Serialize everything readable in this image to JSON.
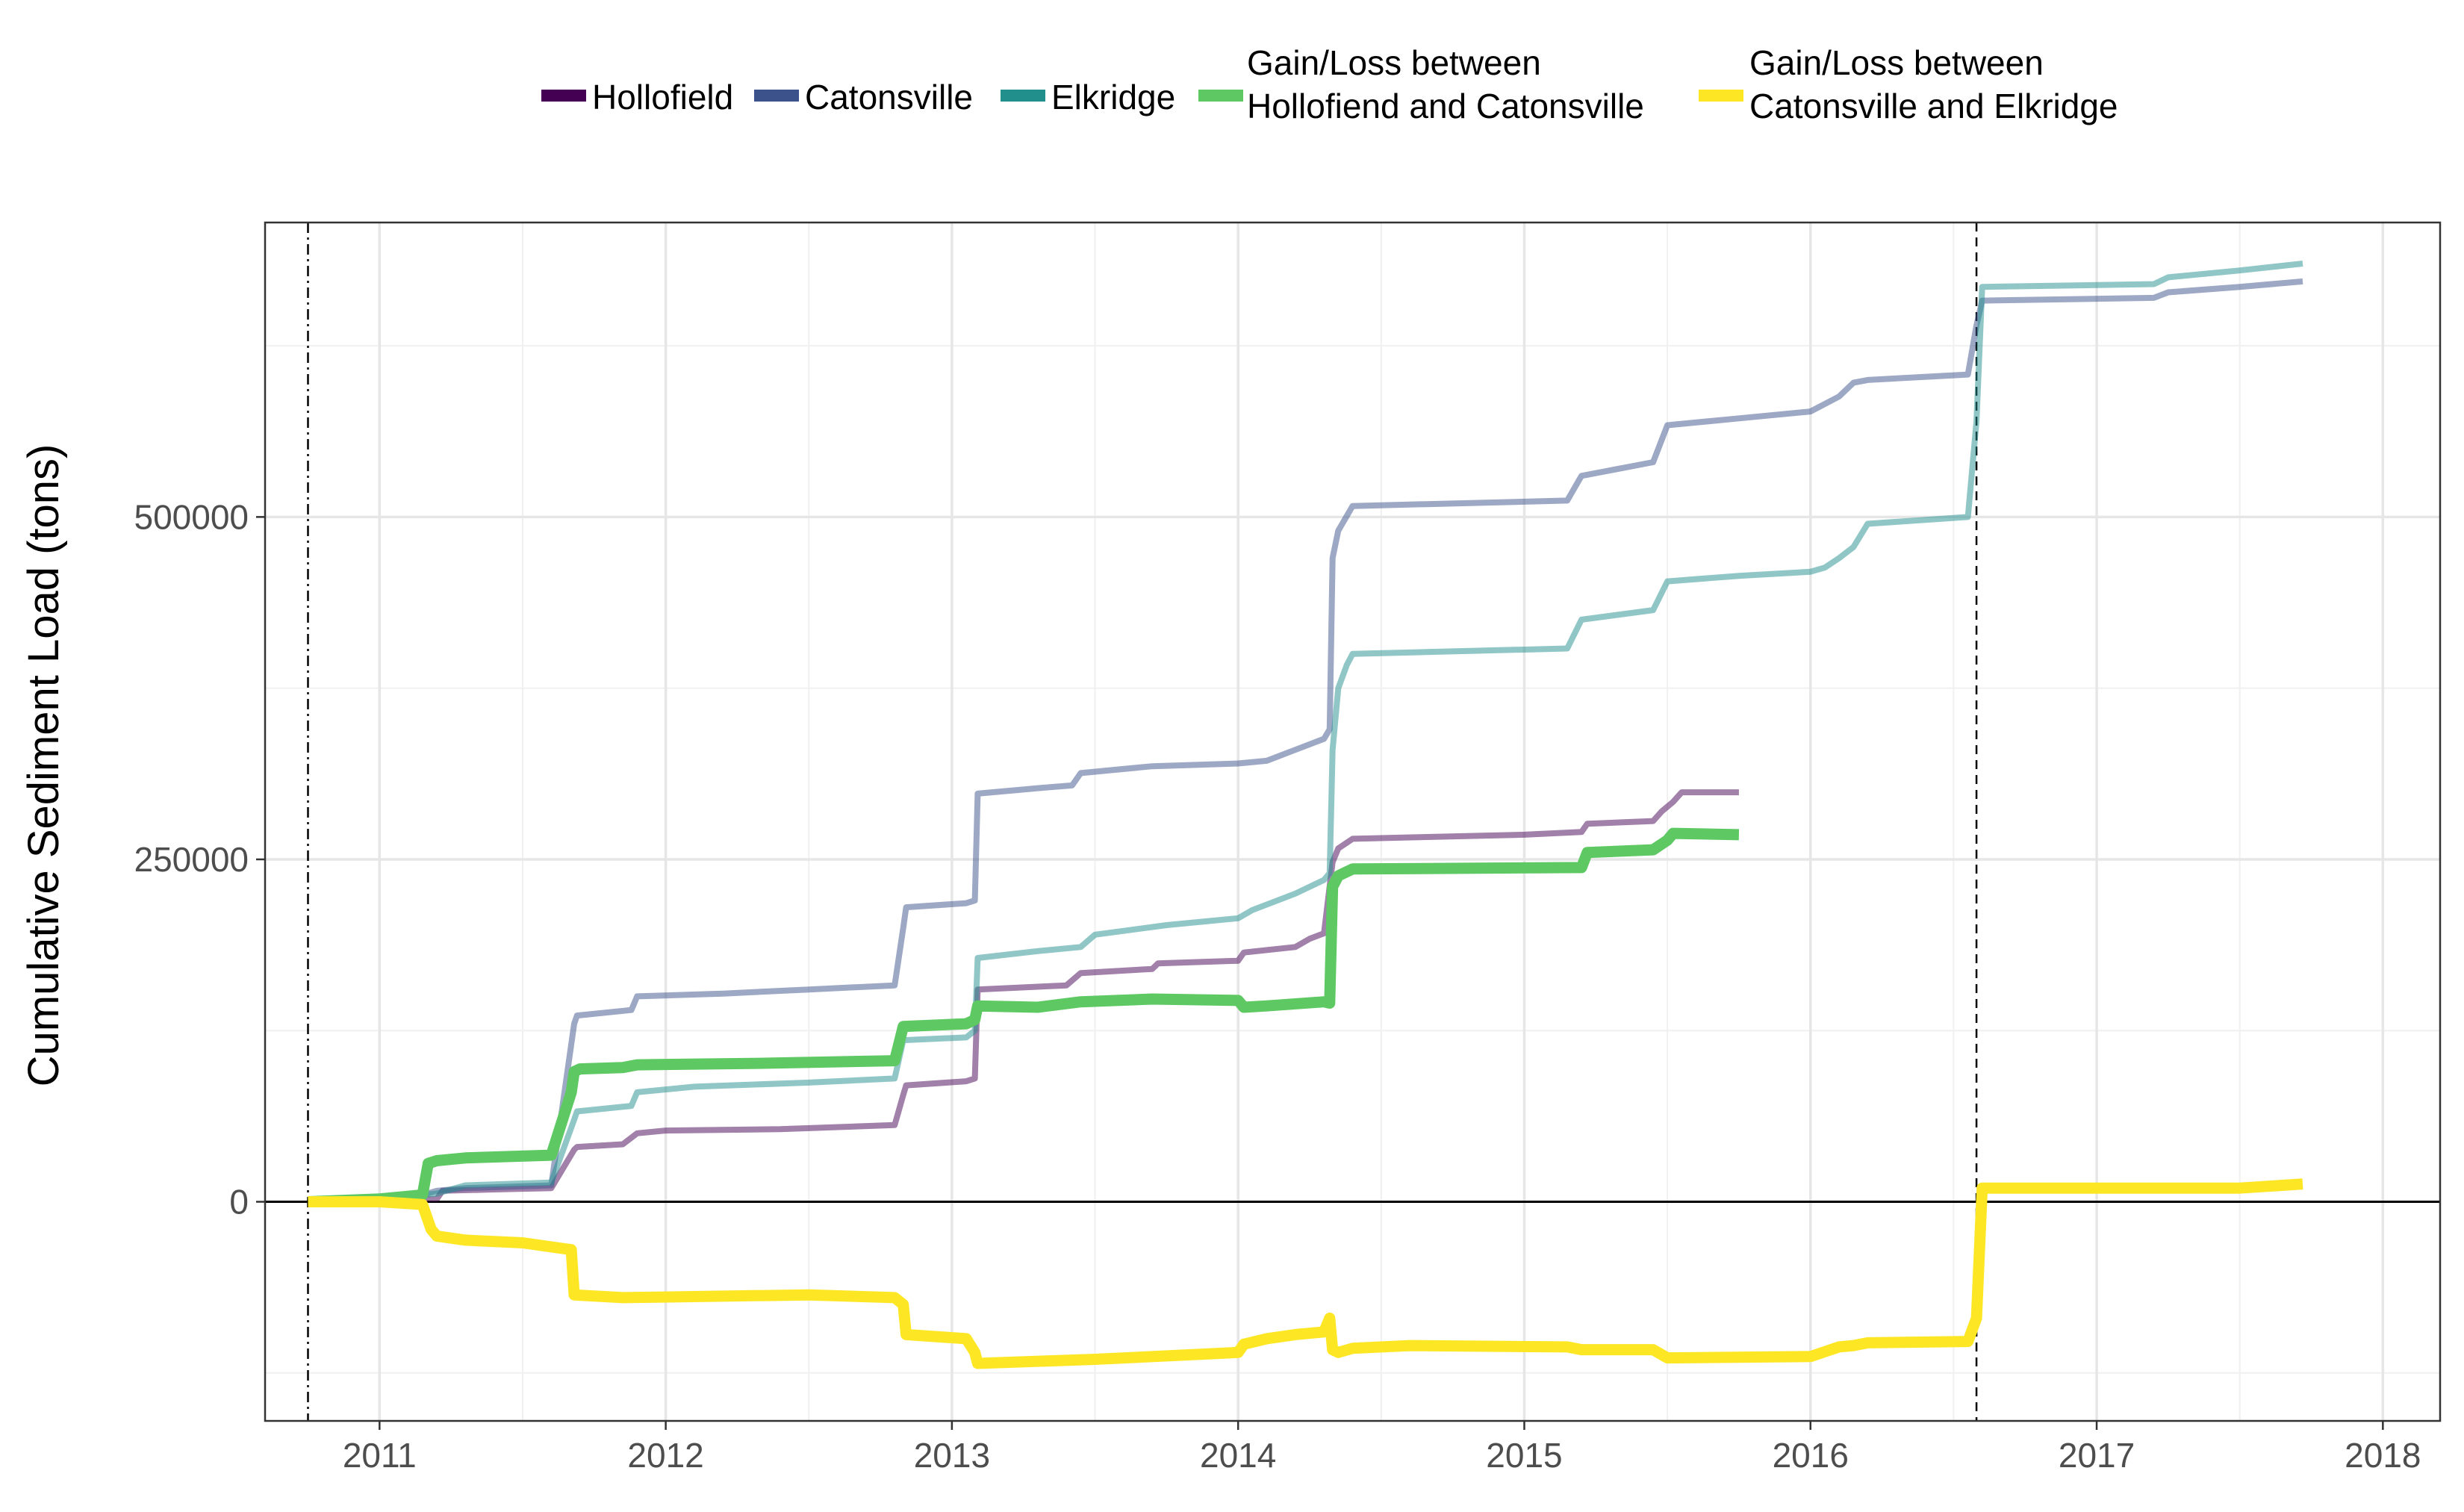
{
  "chart_data": {
    "type": "line",
    "ylabel": "Cumulative Sediment Load (tons)",
    "xlabel": "",
    "xlim": [
      2010.6,
      2018.2
    ],
    "ylim": [
      -160000,
      715000
    ],
    "x_ticks": [
      2011,
      2012,
      2013,
      2014,
      2015,
      2016,
      2017,
      2018
    ],
    "x_tick_labels": [
      "2011",
      "2012",
      "2013",
      "2014",
      "2015",
      "2016",
      "2017",
      "2018"
    ],
    "y_ticks": [
      0,
      250000,
      500000
    ],
    "y_tick_labels": [
      "0",
      "250000",
      "500000"
    ],
    "grid": true,
    "legend_position": "top",
    "reference_lines": [
      {
        "x": 2010.75,
        "style": "dotdash"
      },
      {
        "x": 2016.58,
        "style": "dashed"
      }
    ],
    "series": [
      {
        "name": "Hollofield",
        "color": "#440154",
        "opacity": 0.5,
        "width": "thin",
        "x": [
          2010.75,
          2011.0,
          2011.2,
          2011.22,
          2011.4,
          2011.6,
          2011.68,
          2011.69,
          2011.85,
          2011.9,
          2012.0,
          2012.4,
          2012.8,
          2012.83,
          2012.84,
          2013.05,
          2013.08,
          2013.09,
          2013.4,
          2013.45,
          2013.7,
          2013.72,
          2014.0,
          2014.02,
          2014.2,
          2014.25,
          2014.3,
          2014.33,
          2014.35,
          2014.4,
          2015.0,
          2015.2,
          2015.22,
          2015.45,
          2015.48,
          2015.52,
          2015.55,
          2015.75
        ],
        "y": [
          0,
          1000,
          2000,
          8000,
          9000,
          10000,
          38000,
          40000,
          42000,
          50000,
          52000,
          53000,
          56000,
          78000,
          85000,
          88000,
          90000,
          155000,
          158000,
          167000,
          170000,
          174000,
          176000,
          182000,
          186000,
          192000,
          196000,
          248000,
          258000,
          265000,
          268000,
          270000,
          276000,
          278000,
          285000,
          292000,
          299000,
          299000
        ]
      },
      {
        "name": "Catonsville",
        "color": "#3b528b",
        "opacity": 0.5,
        "width": "thin",
        "x": [
          2010.75,
          2011.0,
          2011.15,
          2011.2,
          2011.3,
          2011.6,
          2011.68,
          2011.69,
          2011.88,
          2011.9,
          2012.2,
          2012.5,
          2012.8,
          2012.83,
          2012.84,
          2013.05,
          2013.08,
          2013.09,
          2013.3,
          2013.42,
          2013.45,
          2013.7,
          2014.0,
          2014.1,
          2014.2,
          2014.3,
          2014.32,
          2014.33,
          2014.35,
          2014.4,
          2015.15,
          2015.2,
          2015.45,
          2015.5,
          2015.75,
          2016.0,
          2016.1,
          2016.15,
          2016.2,
          2016.55,
          2016.58,
          2016.6,
          2017.2,
          2017.25,
          2017.5,
          2017.72
        ],
        "y": [
          0,
          1000,
          5000,
          8000,
          10000,
          12000,
          130000,
          136000,
          140000,
          150000,
          152000,
          155000,
          158000,
          200000,
          215000,
          218000,
          220000,
          298000,
          302000,
          304000,
          313000,
          318000,
          320000,
          322000,
          330000,
          338000,
          345000,
          470000,
          490000,
          508000,
          512000,
          530000,
          540000,
          567000,
          572000,
          577000,
          588000,
          598000,
          600000,
          604000,
          640000,
          658000,
          660000,
          664000,
          668000,
          672000
        ]
      },
      {
        "name": "Elkridge",
        "color": "#21908d",
        "opacity": 0.5,
        "width": "thin",
        "x": [
          2010.75,
          2011.0,
          2011.2,
          2011.3,
          2011.6,
          2011.68,
          2011.69,
          2011.88,
          2011.9,
          2012.1,
          2012.5,
          2012.8,
          2012.83,
          2013.05,
          2013.08,
          2013.09,
          2013.3,
          2013.45,
          2013.5,
          2013.75,
          2014.0,
          2014.05,
          2014.2,
          2014.3,
          2014.32,
          2014.33,
          2014.35,
          2014.38,
          2014.4,
          2015.15,
          2015.2,
          2015.45,
          2015.5,
          2015.75,
          2016.0,
          2016.05,
          2016.1,
          2016.15,
          2016.2,
          2016.55,
          2016.58,
          2016.6,
          2017.2,
          2017.25,
          2017.5,
          2017.72
        ],
        "y": [
          0,
          2000,
          6000,
          12000,
          14000,
          60000,
          66000,
          70000,
          80000,
          84000,
          87000,
          90000,
          118000,
          120000,
          125000,
          178000,
          183000,
          186000,
          195000,
          202000,
          207000,
          213000,
          225000,
          235000,
          240000,
          330000,
          375000,
          392000,
          400000,
          404000,
          425000,
          432000,
          453000,
          457000,
          460000,
          463000,
          470000,
          478000,
          495000,
          500000,
          570000,
          668000,
          670000,
          675000,
          680000,
          685000
        ]
      },
      {
        "name": "Gain/Loss between Hollofiend and Catonsville",
        "color": "#5ec962",
        "opacity": 1,
        "width": "thick",
        "x": [
          2010.75,
          2011.0,
          2011.15,
          2011.17,
          2011.2,
          2011.3,
          2011.6,
          2011.67,
          2011.68,
          2011.7,
          2011.85,
          2011.9,
          2012.3,
          2012.8,
          2012.83,
          2013.05,
          2013.08,
          2013.09,
          2013.3,
          2013.45,
          2013.7,
          2014.0,
          2014.02,
          2014.1,
          2014.3,
          2014.32,
          2014.33,
          2014.35,
          2014.4,
          2015.2,
          2015.22,
          2015.45,
          2015.5,
          2015.52,
          2015.75
        ],
        "y": [
          0,
          2000,
          5000,
          28000,
          30000,
          32000,
          34000,
          80000,
          95000,
          97000,
          98000,
          100000,
          101000,
          103000,
          128000,
          130000,
          133000,
          143000,
          142000,
          146000,
          148000,
          147000,
          142000,
          143000,
          146000,
          145000,
          230000,
          238000,
          243000,
          244000,
          255000,
          257000,
          264000,
          269000,
          268000
        ]
      },
      {
        "name": "Gain/Loss between Catonsville and Elkridge",
        "color": "#fde725",
        "opacity": 1,
        "width": "thick",
        "x": [
          2010.75,
          2011.0,
          2011.15,
          2011.18,
          2011.2,
          2011.3,
          2011.5,
          2011.67,
          2011.68,
          2011.85,
          2012.5,
          2012.8,
          2012.83,
          2012.84,
          2013.05,
          2013.08,
          2013.09,
          2013.5,
          2013.8,
          2014.0,
          2014.02,
          2014.1,
          2014.2,
          2014.3,
          2014.32,
          2014.33,
          2014.35,
          2014.4,
          2014.6,
          2015.15,
          2015.2,
          2015.45,
          2015.5,
          2016.0,
          2016.1,
          2016.15,
          2016.2,
          2016.55,
          2016.58,
          2016.6,
          2017.2,
          2017.5,
          2017.72
        ],
        "y": [
          0,
          0,
          -2000,
          -20000,
          -25000,
          -28000,
          -30000,
          -35000,
          -68000,
          -70000,
          -68000,
          -70000,
          -75000,
          -97000,
          -100000,
          -110000,
          -118000,
          -115000,
          -112000,
          -110000,
          -104000,
          -100000,
          -97000,
          -95000,
          -85000,
          -108000,
          -110000,
          -107000,
          -105000,
          -106000,
          -108000,
          -108000,
          -114000,
          -113000,
          -106000,
          -105000,
          -103000,
          -102000,
          -85000,
          10000,
          10000,
          10000,
          13000
        ]
      }
    ]
  }
}
